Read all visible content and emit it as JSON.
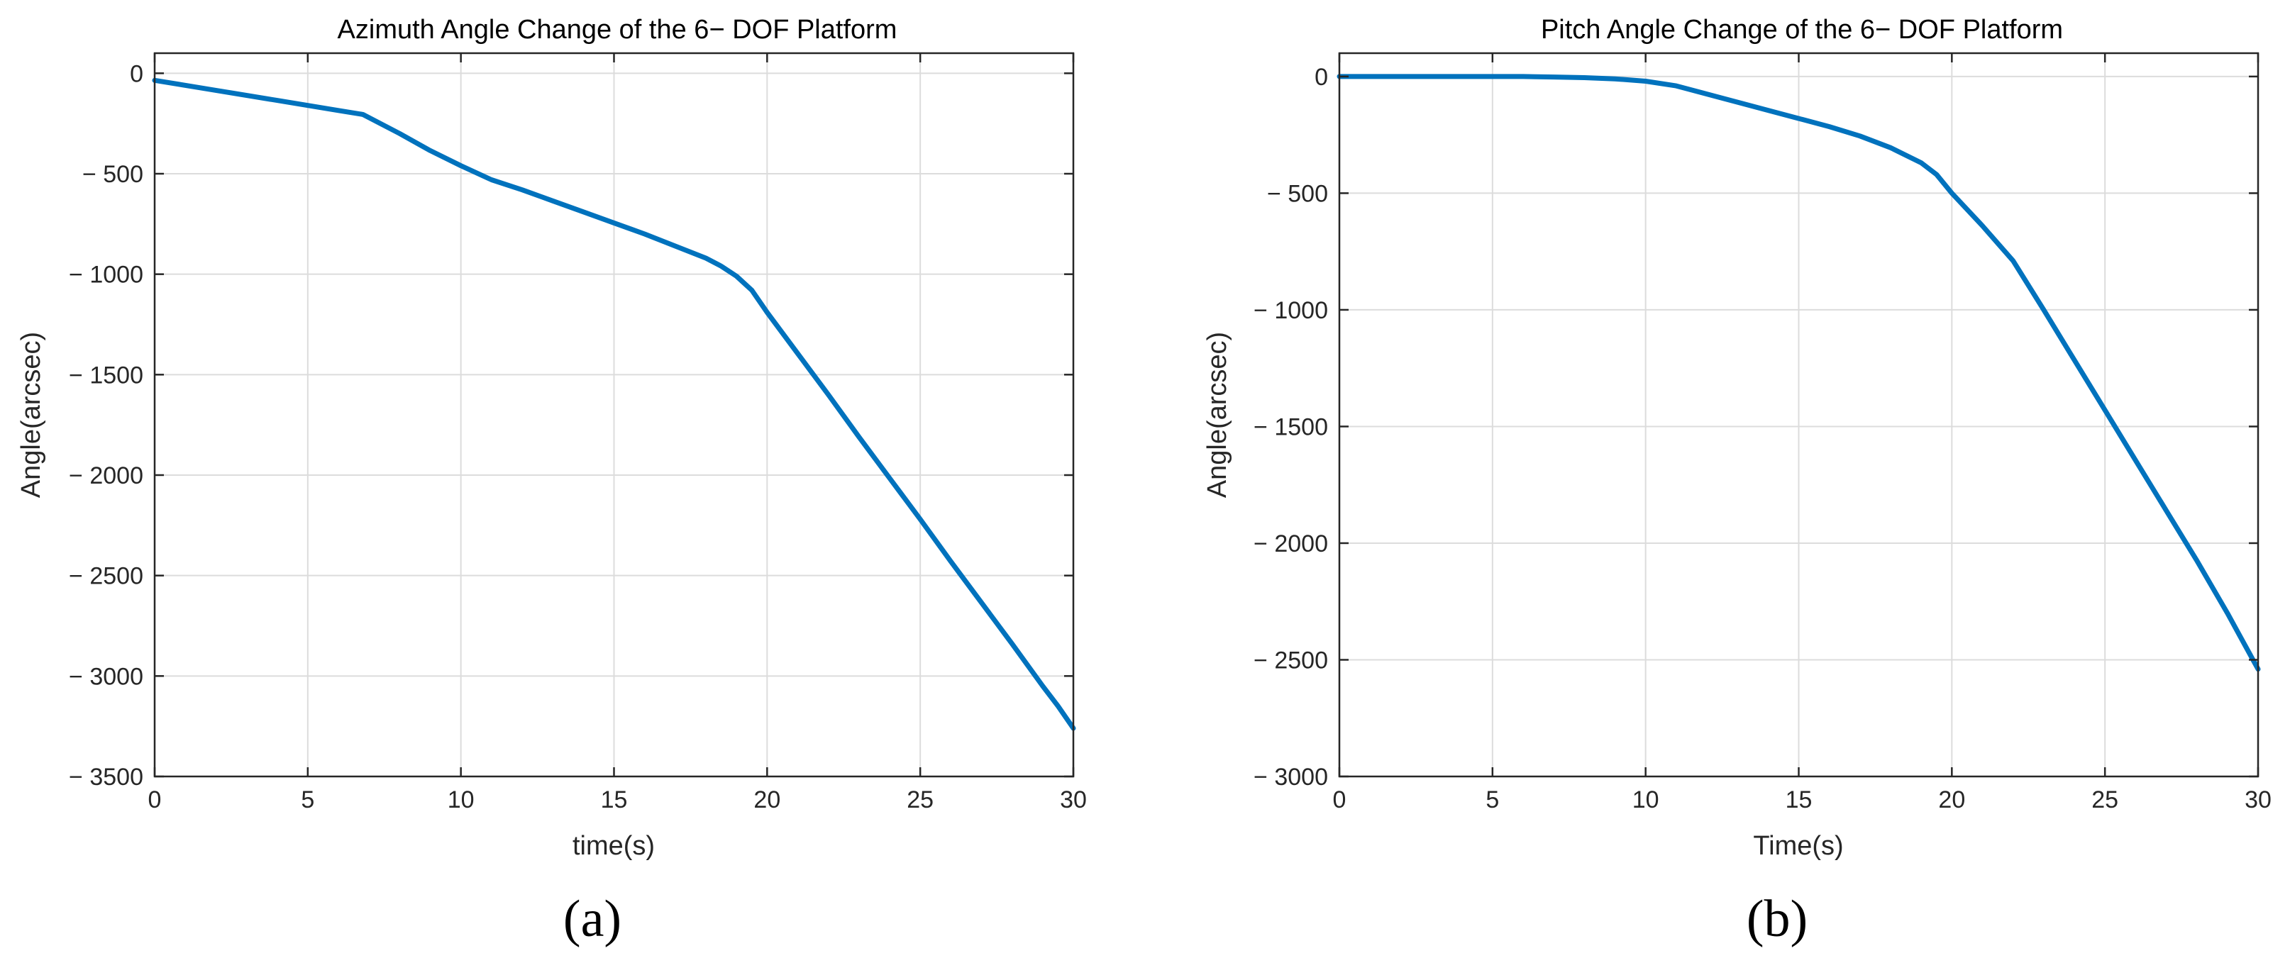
{
  "chart_data": [
    {
      "type": "line",
      "panel_label": "(a)",
      "title": "Azimuth Angle Change of the 6− DOF Platform",
      "xlabel": "time(s)",
      "ylabel": "Angle(arcsec)",
      "xlim": [
        0,
        30
      ],
      "ylim": [
        -3500,
        100
      ],
      "xticks": [
        0,
        5,
        10,
        15,
        20,
        25,
        30
      ],
      "xtick_labels": [
        "0",
        "5",
        "10",
        "15",
        "20",
        "25",
        "30"
      ],
      "yticks": [
        0,
        -500,
        -1000,
        -1500,
        -2000,
        -2500,
        -3000,
        -3500
      ],
      "ytick_labels": [
        "0",
        "− 500",
        "− 1000",
        "− 1500",
        "− 2000",
        "− 2500",
        "− 3000",
        "− 3500"
      ],
      "grid": true,
      "color": "#0072BD",
      "series": [
        {
          "x": [
            0,
            2,
            4,
            6,
            6.8,
            8,
            9,
            10,
            11,
            12,
            13,
            14,
            15,
            16,
            17,
            18,
            18.5,
            19,
            19.5,
            20,
            21,
            22,
            23,
            24,
            25,
            26,
            27,
            28,
            29,
            29.5,
            30
          ],
          "values": [
            -35,
            -85,
            -135,
            -185,
            -205,
            -300,
            -385,
            -460,
            -530,
            -580,
            -635,
            -690,
            -745,
            -800,
            -860,
            -920,
            -960,
            -1010,
            -1080,
            -1190,
            -1395,
            -1600,
            -1810,
            -2015,
            -2220,
            -2430,
            -2635,
            -2840,
            -3050,
            -3150,
            -3260
          ]
        }
      ]
    },
    {
      "type": "line",
      "panel_label": "(b)",
      "title": "Pitch Angle Change of the 6− DOF Platform",
      "xlabel": "Time(s)",
      "ylabel": "Angle(arcsec)",
      "xlim": [
        0,
        30
      ],
      "ylim": [
        -3000,
        100
      ],
      "xticks": [
        0,
        5,
        10,
        15,
        20,
        25,
        30
      ],
      "xtick_labels": [
        "0",
        "5",
        "10",
        "15",
        "20",
        "25",
        "30"
      ],
      "yticks": [
        0,
        -500,
        -1000,
        -1500,
        -2000,
        -2500,
        -3000
      ],
      "ytick_labels": [
        "0",
        "− 500",
        "− 1000",
        "− 1500",
        "− 2000",
        "− 2500",
        "− 3000"
      ],
      "grid": true,
      "color": "#0072BD",
      "series": [
        {
          "x": [
            0,
            2,
            4,
            6,
            7,
            8,
            9,
            10,
            11,
            12,
            13,
            14,
            15,
            16,
            17,
            18,
            19,
            19.5,
            20,
            21,
            22,
            23,
            24,
            25,
            26,
            27,
            28,
            29,
            29.5,
            30
          ],
          "values": [
            0,
            0,
            0,
            0,
            -2,
            -5,
            -10,
            -20,
            -40,
            -75,
            -110,
            -145,
            -180,
            -215,
            -255,
            -305,
            -370,
            -420,
            -500,
            -640,
            -790,
            -1000,
            -1215,
            -1430,
            -1645,
            -1860,
            -2075,
            -2300,
            -2420,
            -2540
          ]
        }
      ]
    }
  ]
}
